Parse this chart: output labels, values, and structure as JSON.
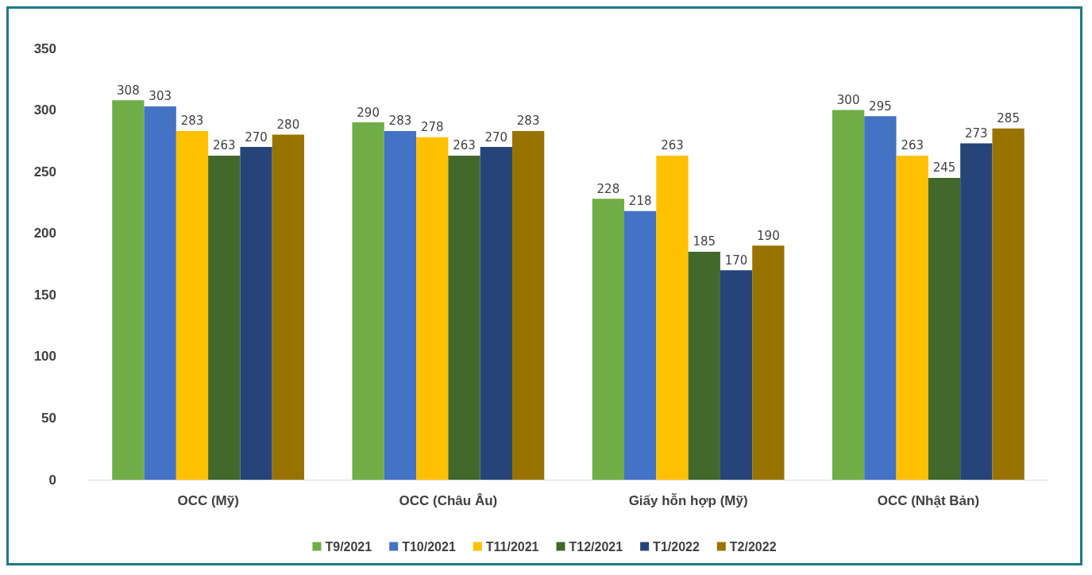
{
  "chart_data": {
    "type": "bar",
    "categories": [
      "OCC (Mỹ)",
      "OCC (Châu Âu)",
      "Giấy hỗn hợp (Mỹ)",
      "OCC (Nhật Bản)"
    ],
    "series": [
      {
        "name": "T9/2021",
        "color": "#70ad47",
        "values": [
          308,
          290,
          228,
          300
        ]
      },
      {
        "name": "T10/2021",
        "color": "#4472c4",
        "values": [
          303,
          283,
          218,
          295
        ]
      },
      {
        "name": "T11/2021",
        "color": "#ffc000",
        "values": [
          283,
          278,
          263,
          263
        ]
      },
      {
        "name": "T12/2021",
        "color": "#43682b",
        "values": [
          263,
          263,
          185,
          245
        ]
      },
      {
        "name": "T1/2022",
        "color": "#264478",
        "values": [
          270,
          270,
          170,
          273
        ]
      },
      {
        "name": "T2/2022",
        "color": "#997300",
        "values": [
          280,
          283,
          190,
          285
        ]
      }
    ],
    "ylim": [
      0,
      350
    ],
    "yticks": [
      0,
      50,
      100,
      150,
      200,
      250,
      300,
      350
    ],
    "grid": false,
    "legend": "bottom",
    "data_labels": true
  }
}
